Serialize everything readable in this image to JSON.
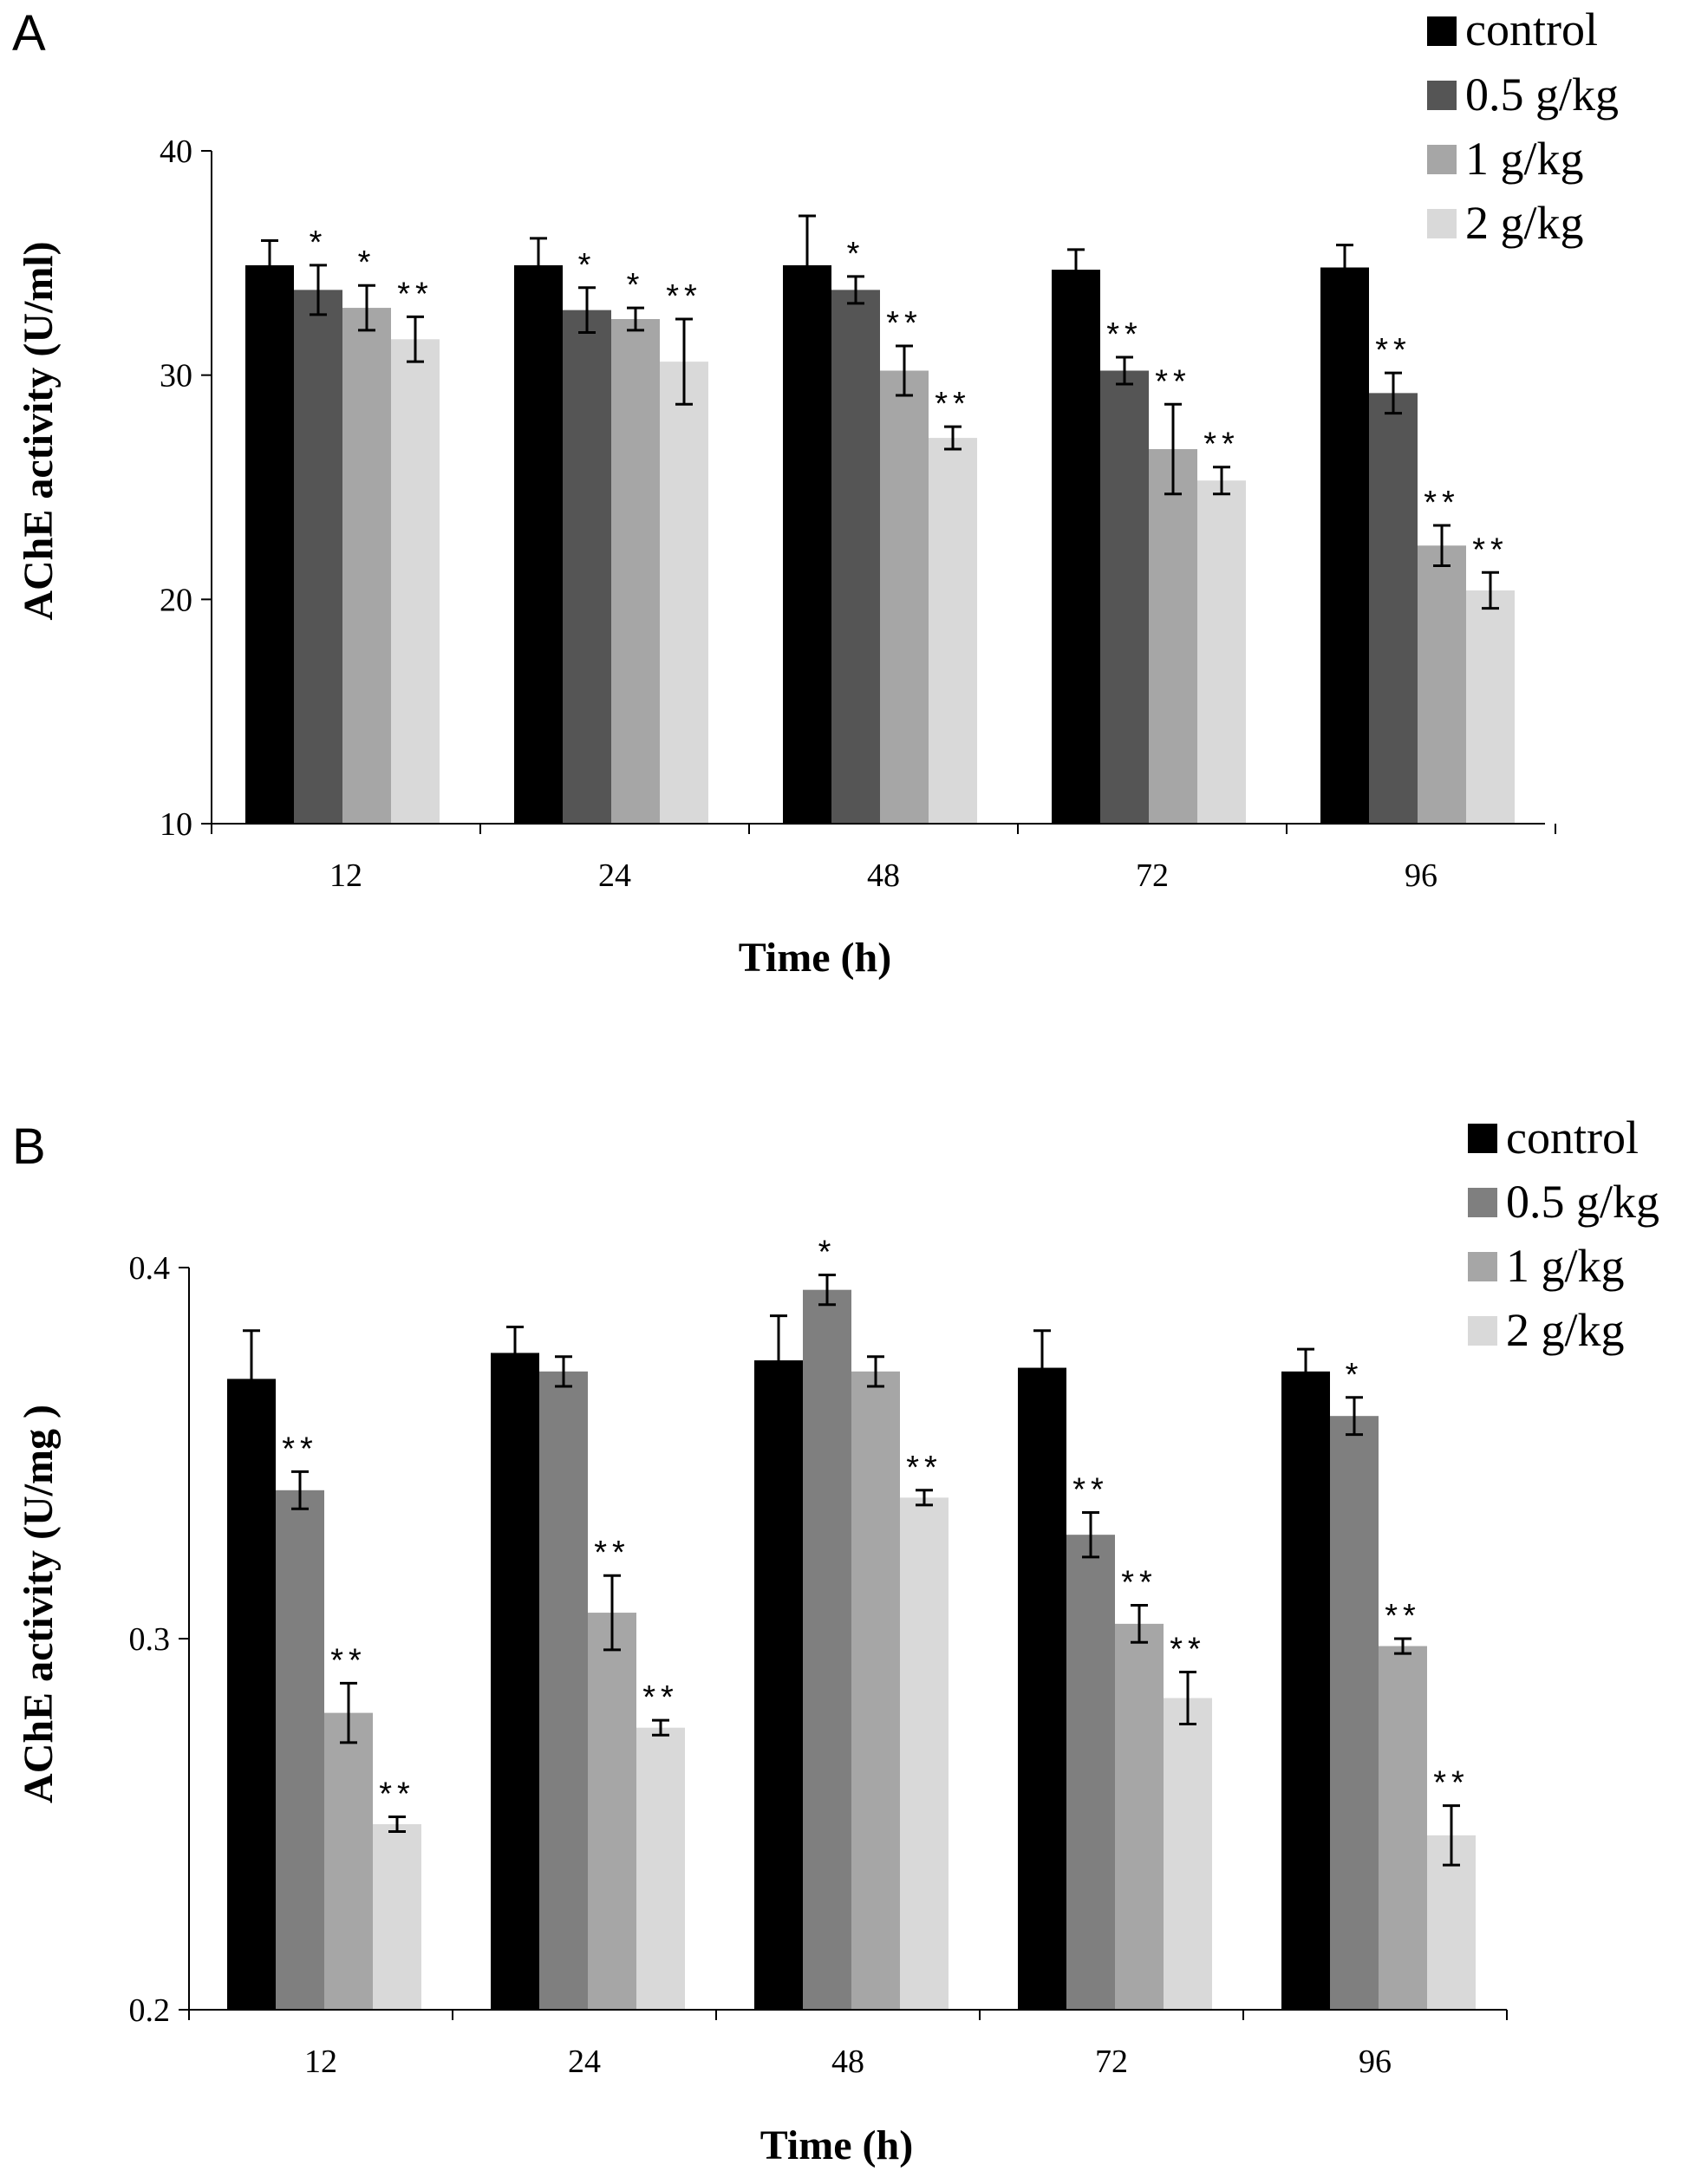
{
  "chart_data": [
    {
      "panel": "A",
      "type": "bar",
      "xlabel": "Time (h)",
      "ylabel": "AChE activity (U/ml)",
      "ylim": [
        10,
        40
      ],
      "yticks": [
        "10",
        "20",
        "30",
        "40"
      ],
      "categories": [
        "12",
        "24",
        "48",
        "72",
        "96"
      ],
      "legend_position": "top-right",
      "series": [
        {
          "name": "control",
          "color": "#000000",
          "values": [
            34.9,
            34.9,
            34.9,
            34.7,
            34.8
          ],
          "errors": [
            1.1,
            1.2,
            2.2,
            0.9,
            1.0
          ],
          "sig": [
            "",
            "",
            "",
            "",
            ""
          ]
        },
        {
          "name": "0.5 g/kg",
          "color": "#555555",
          "values": [
            33.8,
            32.9,
            33.8,
            30.2,
            29.2
          ],
          "errors": [
            1.1,
            1.0,
            0.6,
            0.6,
            0.9
          ],
          "sig": [
            "*",
            "*",
            "*",
            "**",
            "**"
          ]
        },
        {
          "name": "1 g/kg",
          "color": "#a6a6a6",
          "values": [
            33.0,
            32.5,
            30.2,
            26.7,
            22.4
          ],
          "errors": [
            1.0,
            0.5,
            1.1,
            2.0,
            0.9
          ],
          "sig": [
            "*",
            "*",
            "**",
            "**",
            "**"
          ]
        },
        {
          "name": "2 g/kg",
          "color": "#d9d9d9",
          "values": [
            31.6,
            30.6,
            27.2,
            25.3,
            20.4
          ],
          "errors": [
            1.0,
            1.9,
            0.5,
            0.6,
            0.8
          ],
          "sig": [
            "**",
            "**",
            "**",
            "**",
            "**"
          ]
        }
      ]
    },
    {
      "panel": "B",
      "type": "bar",
      "xlabel": "Time (h)",
      "ylabel": "AChE activity (U/mg )",
      "ylim": [
        0.2,
        0.4
      ],
      "yticks": [
        "0.2",
        "0.3",
        "0.4"
      ],
      "categories": [
        "12",
        "24",
        "48",
        "72",
        "96"
      ],
      "legend_position": "top-right",
      "series": [
        {
          "name": "control",
          "color": "#000000",
          "values": [
            0.37,
            0.377,
            0.375,
            0.373,
            0.372
          ],
          "errors": [
            0.013,
            0.007,
            0.012,
            0.01,
            0.006
          ],
          "sig": [
            "",
            "",
            "",
            "",
            ""
          ]
        },
        {
          "name": "0.5 g/kg",
          "color": "#7f7f7f",
          "values": [
            0.34,
            0.372,
            0.394,
            0.328,
            0.36
          ],
          "errors": [
            0.005,
            0.004,
            0.004,
            0.006,
            0.005
          ],
          "sig": [
            "**",
            "",
            "*",
            "**",
            "*"
          ]
        },
        {
          "name": "1 g/kg",
          "color": "#a6a6a6",
          "values": [
            0.28,
            0.307,
            0.372,
            0.304,
            0.298
          ],
          "errors": [
            0.008,
            0.01,
            0.004,
            0.005,
            0.002
          ],
          "sig": [
            "**",
            "**",
            "",
            "**",
            "**"
          ]
        },
        {
          "name": "2 g/kg",
          "color": "#d9d9d9",
          "values": [
            0.25,
            0.276,
            0.338,
            0.284,
            0.247
          ],
          "errors": [
            0.002,
            0.002,
            0.002,
            0.007,
            0.008
          ],
          "sig": [
            "**",
            "**",
            "**",
            "**",
            "**"
          ]
        }
      ]
    }
  ]
}
